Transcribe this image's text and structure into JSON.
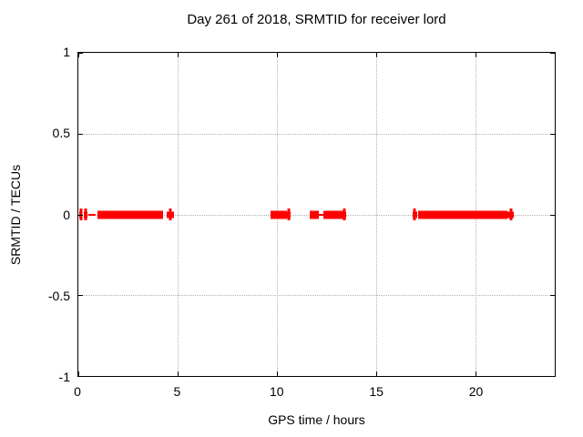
{
  "colors": {
    "background": "#ffffff",
    "frame": "#000000",
    "grid": "#b0b0b0",
    "data": "#ff0000",
    "text": "#000000"
  },
  "chart_data": {
    "type": "scatter",
    "title": "Day 261 of 2018, SRMTID for receiver lord",
    "xlabel": "GPS time / hours",
    "ylabel": "SRMTID / TECUs",
    "xlim": [
      0,
      24
    ],
    "ylim": [
      -1,
      1
    ],
    "xticks": [
      0,
      5,
      10,
      15,
      20
    ],
    "xtick_labels": [
      "0",
      "5",
      "10",
      "15",
      "20"
    ],
    "yticks": [
      1,
      0.5,
      0,
      -0.5,
      -1
    ],
    "ytick_labels": [
      "1",
      "0.5",
      "0",
      "-0.5",
      "-1"
    ],
    "grid": true,
    "legend_position": "none",
    "series": [
      {
        "name": "SRMTID",
        "color": "#ff0000",
        "marker": "plus",
        "y_value": 0,
        "note": "dense plus markers at y=0 forming bars; segments given as start/end in GPS hours",
        "segments": [
          {
            "start": 0.05,
            "end": 0.2,
            "kind": "plus"
          },
          {
            "start": 0.27,
            "end": 0.46,
            "kind": "plus"
          },
          {
            "start": 0.5,
            "end": 0.87,
            "kind": "thin"
          },
          {
            "start": 0.96,
            "end": 4.25,
            "kind": "bar"
          },
          {
            "start": 4.43,
            "end": 4.8,
            "kind": "plus"
          },
          {
            "start": 9.69,
            "end": 10.52,
            "kind": "bar"
          },
          {
            "start": 10.52,
            "end": 10.68,
            "kind": "plus"
          },
          {
            "start": 11.66,
            "end": 12.11,
            "kind": "bar"
          },
          {
            "start": 12.11,
            "end": 12.34,
            "kind": "thin"
          },
          {
            "start": 12.34,
            "end": 13.35,
            "kind": "bar"
          },
          {
            "start": 13.35,
            "end": 13.49,
            "kind": "plus"
          },
          {
            "start": 16.82,
            "end": 17.05,
            "kind": "plus"
          },
          {
            "start": 17.1,
            "end": 21.62,
            "kind": "bar"
          },
          {
            "start": 21.62,
            "end": 21.94,
            "kind": "plus"
          }
        ]
      }
    ]
  }
}
